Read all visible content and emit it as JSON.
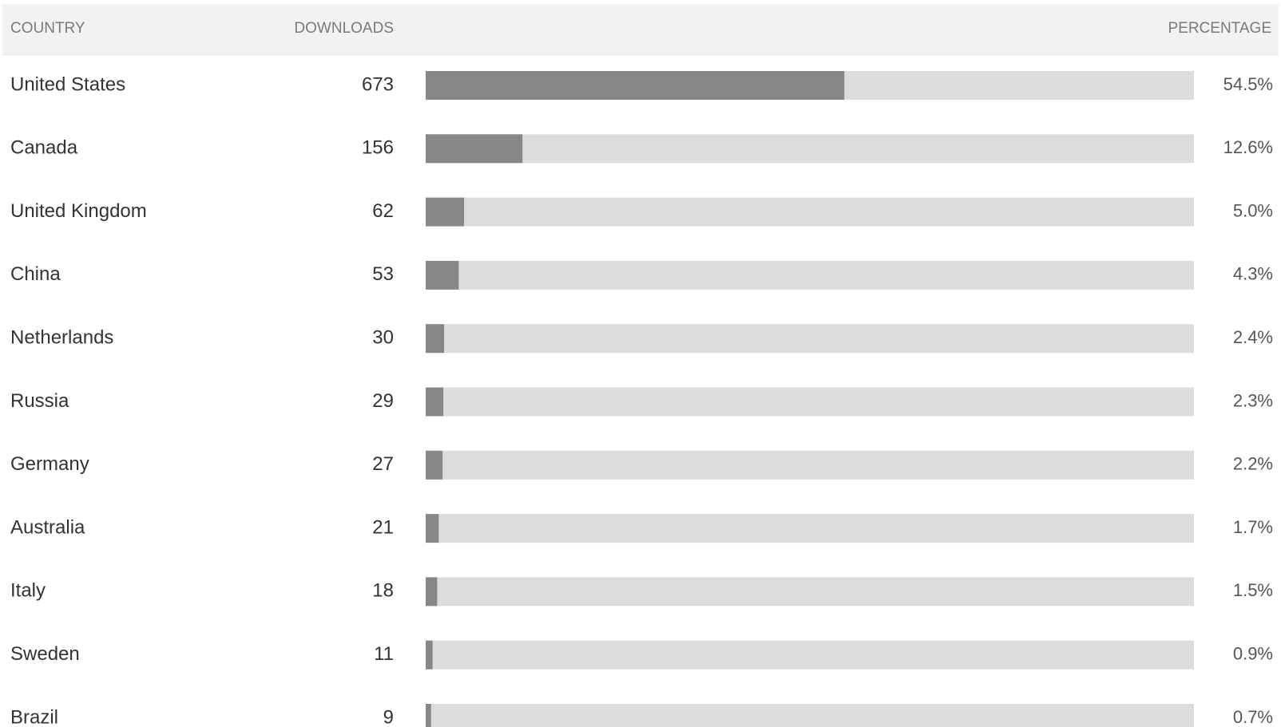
{
  "chart_data": {
    "type": "bar",
    "headers": [
      "COUNTRY",
      "DOWNLOADS",
      "PERCENTAGE"
    ],
    "categories": [
      "United States",
      "Canada",
      "United Kingdom",
      "China",
      "Netherlands",
      "Russia",
      "Germany",
      "Australia",
      "Italy",
      "Sweden",
      "Brazil"
    ],
    "downloads": [
      673,
      156,
      62,
      53,
      30,
      29,
      27,
      21,
      18,
      11,
      9
    ],
    "values": [
      54.5,
      12.6,
      5.0,
      4.3,
      2.4,
      2.3,
      2.2,
      1.7,
      1.5,
      0.9,
      0.7
    ],
    "value_labels": [
      "54.5%",
      "12.6%",
      "5.0%",
      "4.3%",
      "2.4%",
      "2.3%",
      "2.2%",
      "1.7%",
      "1.5%",
      "0.9%",
      "0.7%"
    ],
    "xlim": [
      0,
      100
    ],
    "color": "#878787"
  }
}
